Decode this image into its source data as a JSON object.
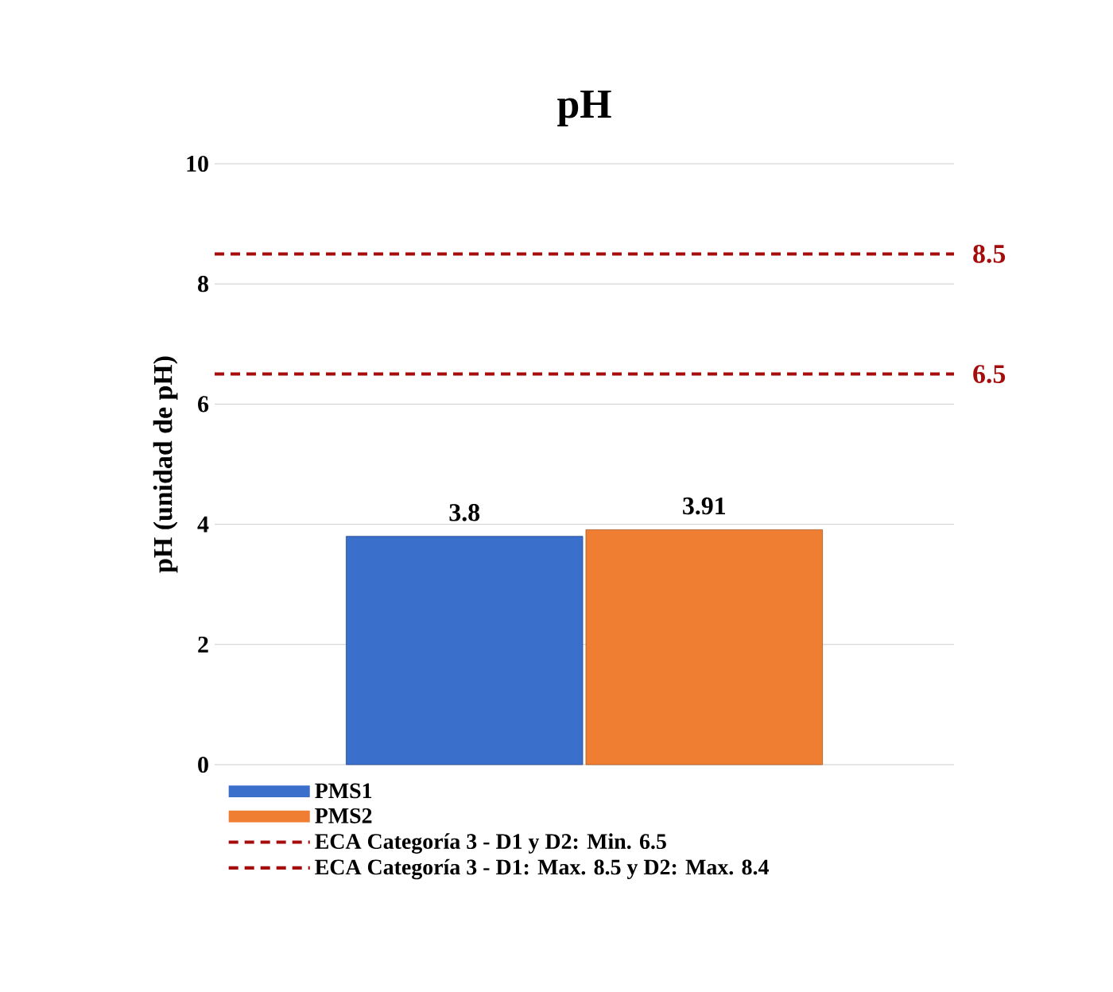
{
  "chart_data": {
    "type": "bar",
    "title": "pH",
    "ylabel": "pH (unidad de pH)",
    "categories": [
      null
    ],
    "series": [
      {
        "name": "PMS1",
        "color": "#3a6fcc",
        "values": [
          3.8
        ]
      },
      {
        "name": "PMS2",
        "color": "#ef7d32",
        "values": [
          3.91
        ]
      }
    ],
    "ylim": [
      0,
      10
    ],
    "yticks": [
      0,
      2,
      4,
      6,
      8,
      10
    ],
    "grid": "y",
    "data_labels": true,
    "legend": "bottom",
    "annotations": [
      "6.5",
      "8.5"
    ],
    "ref_lines": [
      {
        "axis": "y",
        "value": 6.5,
        "label": "ECA Categoría 3 - D1 y D2: Min. 6.5",
        "color": "#a50d0d",
        "line_style": "dashed"
      },
      {
        "axis": "y",
        "value": 8.5,
        "label": "ECA Categoría 3 - D1: Max. 8.5 y D2: Max. 8.4",
        "color": "#a50d0d",
        "line_style": "dashed"
      }
    ]
  }
}
